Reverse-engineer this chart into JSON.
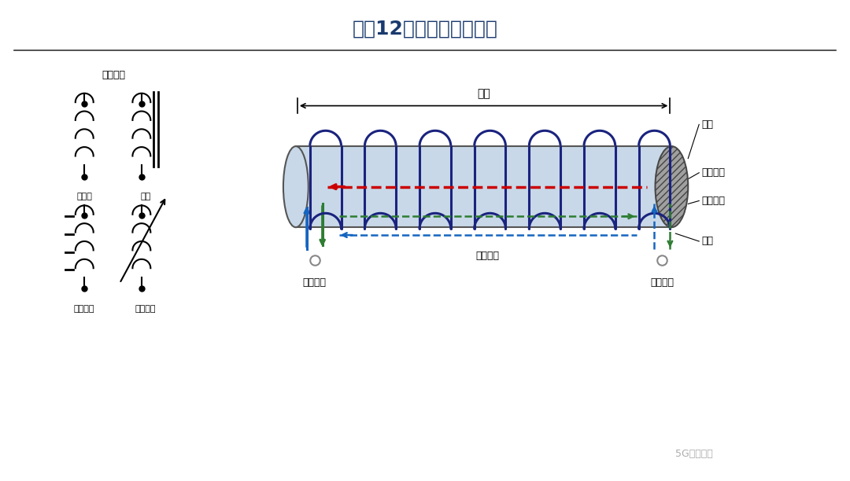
{
  "title": "图表12：电感器工作原理",
  "title_fontsize": 18,
  "title_color": "#1a3a6e",
  "bg_color": "#ffffff",
  "header_line_color": "#333333",
  "watermark": "5G行业观察",
  "label_symbol": "电感符号",
  "label_air": "空气芯",
  "label_iron": "铁芯",
  "label_ferrite": "铁氧体芯",
  "label_variable": "可调电感",
  "label_length": "长度",
  "label_inner": "内芯",
  "label_cross": "横截面积",
  "label_field_dir": "磁场方向",
  "label_turns": "匝数",
  "label_field_change": "磁场变化",
  "label_current_change": "电流变化",
  "label_induced_current": "感应电流",
  "coil_color": "#1a237e",
  "magnetic_arrow_color": "#cc0000",
  "cylinder_fill": "#c8d8e8",
  "footer_color": "#888888"
}
